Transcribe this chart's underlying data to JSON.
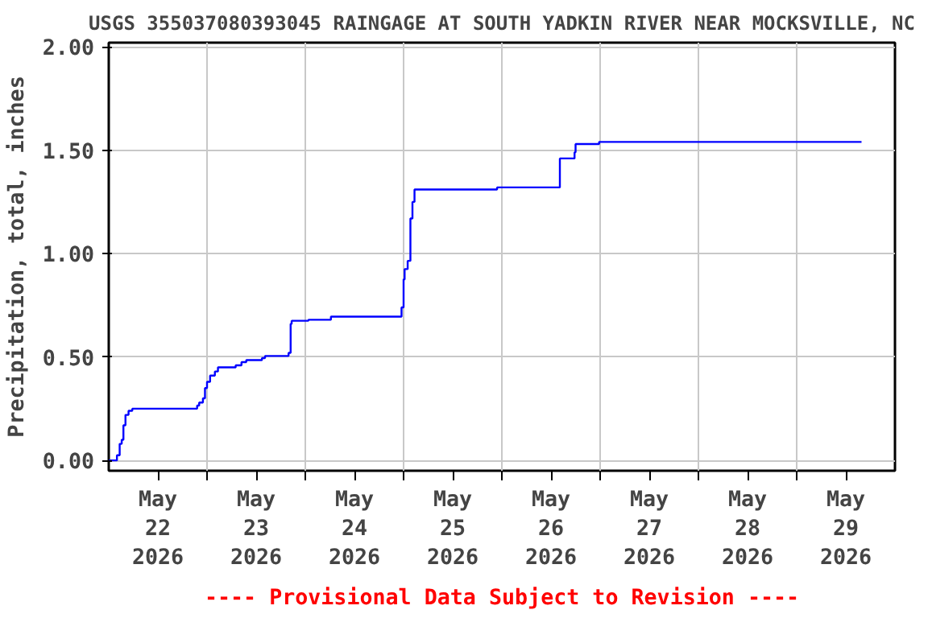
{
  "chart_data": {
    "type": "step",
    "title": "USGS 355037080393045 RAINGAGE AT SOUTH YADKIN RIVER NEAR MOCKSVILLE, NC",
    "ylabel": "Precipitation, total, inches",
    "annotations": [
      "---- Provisional Data Subject to Revision ----"
    ],
    "x": [
      "2026-05-22T00:00",
      "2026-05-22T02:00",
      "2026-05-22T02:40",
      "2026-05-22T03:10",
      "2026-05-22T03:35",
      "2026-05-22T04:05",
      "2026-05-22T04:50",
      "2026-05-22T05:45",
      "2026-05-22T21:35",
      "2026-05-22T22:05",
      "2026-05-22T23:00",
      "2026-05-22T23:30",
      "2026-05-23T00:00",
      "2026-05-23T00:45",
      "2026-05-23T01:55",
      "2026-05-23T02:40",
      "2026-05-23T07:00",
      "2026-05-23T08:25",
      "2026-05-23T09:35",
      "2026-05-23T13:25",
      "2026-05-23T14:10",
      "2026-05-23T19:55",
      "2026-05-23T20:25",
      "2026-05-23T20:40",
      "2026-05-24T00:45",
      "2026-05-24T06:15",
      "2026-05-24T23:30",
      "2026-05-25T00:00",
      "2026-05-25T00:15",
      "2026-05-25T01:00",
      "2026-05-25T01:40",
      "2026-05-25T02:10",
      "2026-05-25T02:40",
      "2026-05-25T22:50",
      "2026-05-26T14:10",
      "2026-05-26T17:45",
      "2026-05-26T18:00",
      "2026-05-26T23:45",
      "2026-05-29T15:50"
    ],
    "series": [
      {
        "color": "#0000ff",
        "values": [
          0.0,
          0.025,
          0.08,
          0.1,
          0.17,
          0.22,
          0.24,
          0.25,
          0.265,
          0.28,
          0.3,
          0.35,
          0.38,
          0.41,
          0.43,
          0.45,
          0.46,
          0.475,
          0.485,
          0.495,
          0.505,
          0.52,
          0.66,
          0.675,
          0.68,
          0.695,
          0.74,
          0.875,
          0.925,
          0.965,
          1.17,
          1.25,
          1.31,
          1.32,
          1.46,
          1.49,
          1.53,
          1.54,
          1.54
        ]
      }
    ],
    "xlim": [
      "2026-05-22T00:00",
      "2026-05-30T00:00"
    ],
    "ylim": [
      -0.05,
      2.02
    ],
    "xticks": [
      {
        "value": "2026-05-22T12:00",
        "label": "May\n22\n2026"
      },
      {
        "value": "2026-05-23T00:00",
        "label": null
      },
      {
        "value": "2026-05-23T12:00",
        "label": "May\n23\n2026"
      },
      {
        "value": "2026-05-24T00:00",
        "label": null
      },
      {
        "value": "2026-05-24T12:00",
        "label": "May\n24\n2026"
      },
      {
        "value": "2026-05-25T00:00",
        "label": null
      },
      {
        "value": "2026-05-25T12:00",
        "label": "May\n25\n2026"
      },
      {
        "value": "2026-05-26T00:00",
        "label": null
      },
      {
        "value": "2026-05-26T12:00",
        "label": "May\n26\n2026"
      },
      {
        "value": "2026-05-27T00:00",
        "label": null
      },
      {
        "value": "2026-05-27T12:00",
        "label": "May\n27\n2026"
      },
      {
        "value": "2026-05-28T00:00",
        "label": null
      },
      {
        "value": "2026-05-28T12:00",
        "label": "May\n28\n2026"
      },
      {
        "value": "2026-05-29T00:00",
        "label": null
      },
      {
        "value": "2026-05-29T12:00",
        "label": "May\n29\n2026"
      }
    ],
    "yticks": [
      {
        "value": 0,
        "label": "0.00"
      },
      {
        "value": 0.5,
        "label": "0.50"
      },
      {
        "value": 1.0,
        "label": "1.00"
      },
      {
        "value": 1.5,
        "label": "1.50"
      },
      {
        "value": 2.0,
        "label": "2.00"
      }
    ],
    "grid": true,
    "line_style": "solid"
  }
}
